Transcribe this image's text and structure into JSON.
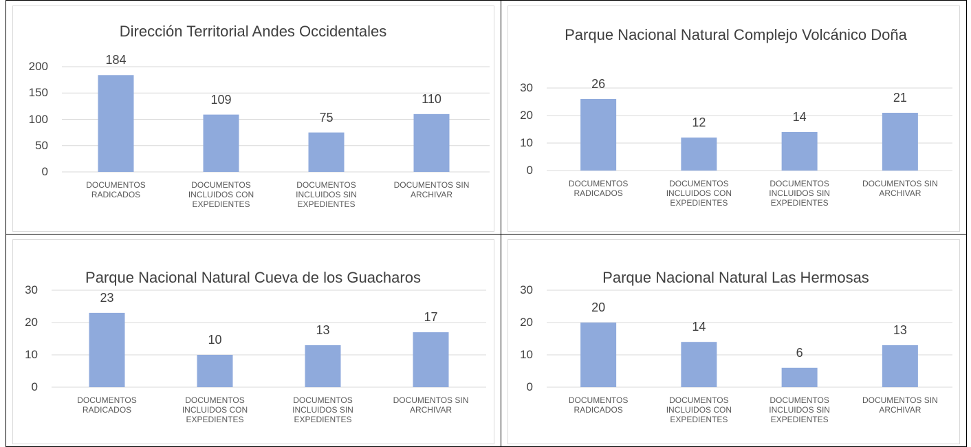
{
  "chart_data": [
    {
      "type": "bar",
      "title": "Dirección Territorial Andes Occidentales",
      "categories": [
        "DOCUMENTOS RADICADOS",
        "DOCUMENTOS INCLUIDOS CON EXPEDIENTES",
        "DOCUMENTOS INCLUIDOS SIN EXPEDIENTES",
        "DOCUMENTOS SIN ARCHIVAR"
      ],
      "values": [
        184,
        109,
        75,
        110
      ],
      "color": "#8faadc",
      "ylim": [
        0,
        200
      ],
      "yticks": [
        0,
        50,
        100,
        150,
        200
      ],
      "grid": true
    },
    {
      "type": "bar",
      "title": "Parque Nacional Natural Complejo Volcánico Doña",
      "categories": [
        "DOCUMENTOS RADICADOS",
        "DOCUMENTOS INCLUIDOS CON EXPEDIENTES",
        "DOCUMENTOS INCLUIDOS SIN EXPEDIENTES",
        "DOCUMENTOS SIN ARCHIVAR"
      ],
      "values": [
        26,
        12,
        14,
        21
      ],
      "color": "#8faadc",
      "ylim": [
        0,
        30
      ],
      "yticks": [
        0,
        10,
        20,
        30
      ],
      "grid": true
    },
    {
      "type": "bar",
      "title": "Parque Nacional Natural Cueva de los Guacharos",
      "categories": [
        "DOCUMENTOS RADICADOS",
        "DOCUMENTOS INCLUIDOS CON EXPEDIENTES",
        "DOCUMENTOS INCLUIDOS SIN EXPEDIENTES",
        "DOCUMENTOS SIN ARCHIVAR"
      ],
      "values": [
        23,
        10,
        13,
        17
      ],
      "color": "#8faadc",
      "ylim": [
        0,
        30
      ],
      "yticks": [
        0,
        10,
        20,
        30
      ],
      "grid": true
    },
    {
      "type": "bar",
      "title": "Parque Nacional Natural Las Hermosas",
      "categories": [
        "DOCUMENTOS RADICADOS",
        "DOCUMENTOS INCLUIDOS CON EXPEDIENTES",
        "DOCUMENTOS INCLUIDOS SIN EXPEDIENTES",
        "DOCUMENTOS SIN ARCHIVAR"
      ],
      "values": [
        20,
        14,
        6,
        13
      ],
      "color": "#8faadc",
      "ylim": [
        0,
        30
      ],
      "yticks": [
        0,
        10,
        20,
        30
      ],
      "grid": true
    }
  ]
}
